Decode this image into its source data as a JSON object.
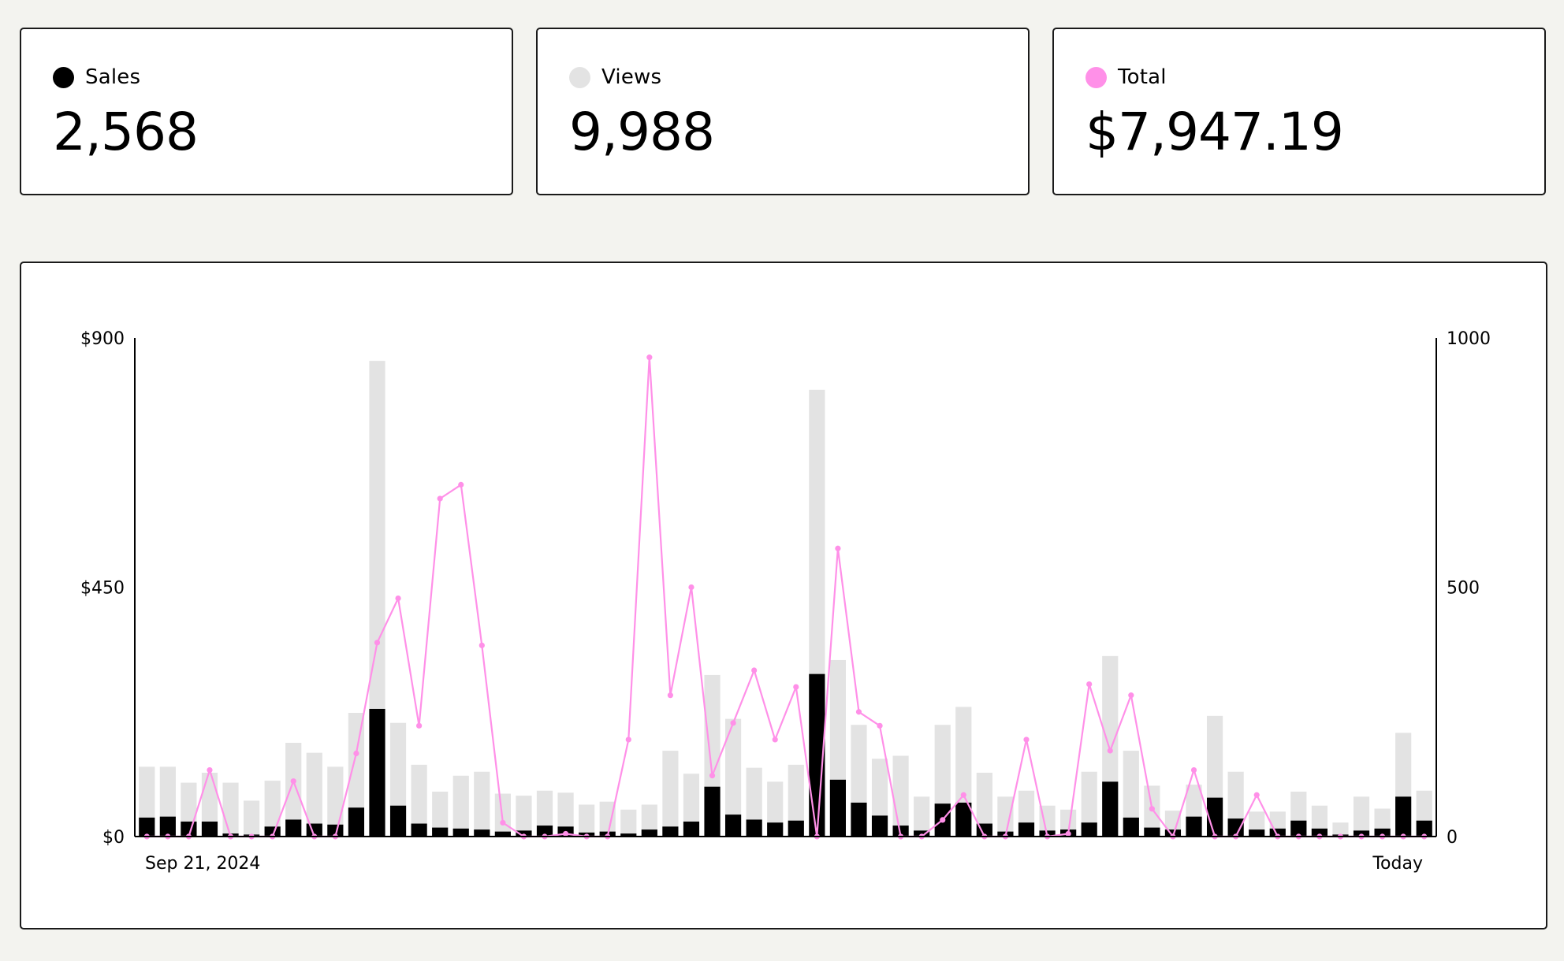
{
  "cards": [
    {
      "label": "Sales",
      "value": "2,568",
      "color": "#000000"
    },
    {
      "label": "Views",
      "value": "9,988",
      "color": "#e3e3e3"
    },
    {
      "label": "Total",
      "value": "$7,947.19",
      "color": "#ff90e8"
    }
  ],
  "colors": {
    "sales": "#000000",
    "views": "#e3e3e3",
    "total": "#ff90e8",
    "axis": "#000000"
  },
  "chart_data": {
    "type": "bar",
    "title": "",
    "x_start_label": "Sep 21, 2024",
    "x_end_label": "Today",
    "y_left": {
      "ticks": [
        "$0",
        "$450",
        "$900"
      ],
      "ylim": [
        0,
        900
      ]
    },
    "y_right": {
      "ticks": [
        "0",
        "500",
        "1000"
      ],
      "ylim": [
        0,
        1000
      ]
    },
    "grid": false,
    "series": [
      {
        "name": "Views",
        "axis": "right",
        "type": "bar",
        "values": [
          140,
          140,
          108,
          128,
          108,
          72,
          112,
          188,
          168,
          140,
          248,
          954,
          228,
          144,
          90,
          122,
          130,
          86,
          82,
          92,
          88,
          64,
          70,
          54,
          64,
          172,
          126,
          324,
          236,
          138,
          110,
          144,
          896,
          354,
          224,
          156,
          162,
          80,
          224,
          260,
          128,
          80,
          92,
          62,
          54,
          130,
          362,
          172,
          102,
          52,
          104,
          242,
          130,
          50,
          50,
          90,
          62,
          28,
          80,
          56,
          208,
          92
        ],
        "stacked_sales": true
      },
      {
        "name": "Sales",
        "axis": "right",
        "type": "bar",
        "values": [
          38,
          40,
          30,
          30,
          6,
          4,
          20,
          34,
          26,
          24,
          58,
          256,
          62,
          26,
          18,
          16,
          14,
          10,
          12,
          22,
          20,
          8,
          10,
          6,
          14,
          20,
          30,
          100,
          44,
          34,
          28,
          32,
          326,
          114,
          68,
          42,
          22,
          12,
          66,
          68,
          26,
          10,
          28,
          12,
          14,
          28,
          110,
          38,
          18,
          14,
          40,
          78,
          36,
          14,
          16,
          32,
          16,
          4,
          12,
          16,
          80,
          32
        ]
      },
      {
        "name": "Total",
        "axis": "left",
        "type": "line",
        "values": [
          0,
          0,
          0,
          120,
          0,
          0,
          0,
          100,
          0,
          0,
          150,
          350,
          430,
          200,
          610,
          635,
          345,
          25,
          0,
          0,
          5,
          0,
          0,
          175,
          865,
          255,
          450,
          110,
          205,
          300,
          175,
          270,
          0,
          520,
          225,
          200,
          0,
          0,
          30,
          75,
          0,
          0,
          175,
          0,
          5,
          275,
          155,
          255,
          50,
          0,
          120,
          0,
          0,
          75,
          0,
          0,
          0,
          0,
          0,
          0,
          0,
          0
        ]
      }
    ]
  }
}
